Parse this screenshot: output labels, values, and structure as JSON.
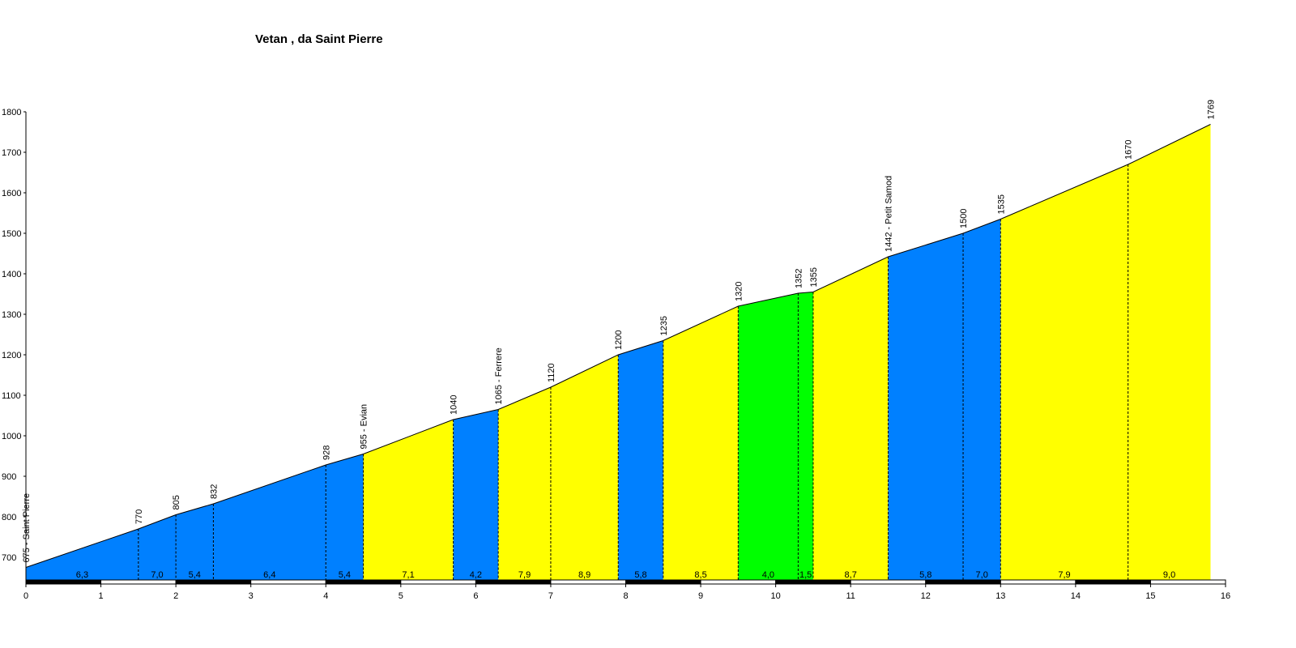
{
  "chart_data": {
    "type": "profile",
    "title": "Vetan , da Saint Pierre",
    "x": [
      0,
      1.5,
      2,
      2.5,
      4,
      4.5,
      5.7,
      6.3,
      7,
      7.9,
      8.5,
      9.5,
      10.3,
      10.5,
      11.5,
      12.5,
      13,
      14.7,
      15.8
    ],
    "values": [
      675,
      770,
      805,
      832,
      928,
      955,
      1040,
      1065,
      1120,
      1200,
      1235,
      1320,
      1352,
      1355,
      1442,
      1500,
      1535,
      1670,
      1769
    ],
    "value_labels": [
      "675 - Saint Pierre",
      "770",
      "805",
      "832",
      "928",
      "955 - Evian",
      "1040",
      "1065 - Ferrere",
      "1120",
      "1200",
      "1235",
      "1320",
      "1352",
      "1355",
      "1442 - Petit Samod",
      "1500",
      "1535",
      "1670",
      "1769"
    ],
    "grades": [
      {
        "value": 6.3,
        "label": "6,3"
      },
      {
        "value": 7.0,
        "label": "7,0"
      },
      {
        "value": 5.4,
        "label": "5,4"
      },
      {
        "value": 6.4,
        "label": "6,4"
      },
      {
        "value": 5.4,
        "label": "5,4"
      },
      {
        "value": 7.1,
        "label": "7,1"
      },
      {
        "value": 4.2,
        "label": "4,2"
      },
      {
        "value": 7.9,
        "label": "7,9"
      },
      {
        "value": 8.9,
        "label": "8,9"
      },
      {
        "value": 5.8,
        "label": "5,8"
      },
      {
        "value": 8.5,
        "label": "8,5"
      },
      {
        "value": 4.0,
        "label": "4,0"
      },
      {
        "value": 1.5,
        "label": "1,5"
      },
      {
        "value": 8.7,
        "label": "8,7"
      },
      {
        "value": 5.8,
        "label": "5,8"
      },
      {
        "value": 7.0,
        "label": "7,0"
      },
      {
        "value": 7.9,
        "label": "7,9"
      },
      {
        "value": 9.0,
        "label": "9,0"
      }
    ],
    "segment_colors": [
      "#0080ff",
      "#0080ff",
      "#0080ff",
      "#0080ff",
      "#0080ff",
      "#ffff00",
      "#0080ff",
      "#ffff00",
      "#ffff00",
      "#0080ff",
      "#ffff00",
      "#00ff00",
      "#00ff00",
      "#ffff00",
      "#0080ff",
      "#0080ff",
      "#ffff00",
      "#ffff00"
    ],
    "xlim": [
      0,
      16
    ],
    "xticks": [
      0,
      1,
      2,
      3,
      4,
      5,
      6,
      7,
      8,
      9,
      10,
      11,
      12,
      13,
      14,
      15,
      16
    ],
    "ylim": [
      642,
      1800
    ],
    "yticks": [
      700,
      800,
      900,
      1000,
      1100,
      1200,
      1300,
      1400,
      1500,
      1600,
      1700,
      1800
    ]
  }
}
